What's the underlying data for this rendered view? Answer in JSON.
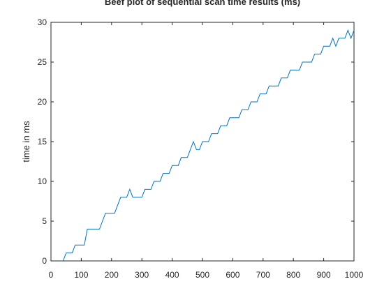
{
  "chart_data": {
    "type": "line",
    "title": "Beef plot of sequential scan time results (ms)",
    "xlabel": "",
    "ylabel": "time in ms",
    "xlim": [
      0,
      1000
    ],
    "ylim": [
      0,
      30
    ],
    "xticks": [
      0,
      100,
      200,
      300,
      400,
      500,
      600,
      700,
      800,
      900,
      1000
    ],
    "yticks": [
      0,
      5,
      10,
      15,
      20,
      25,
      30
    ],
    "grid": false,
    "legend": "none",
    "series": [
      {
        "color": "#0072bd",
        "points": [
          [
            40,
            0
          ],
          [
            50,
            1
          ],
          [
            60,
            1
          ],
          [
            70,
            1
          ],
          [
            80,
            2
          ],
          [
            90,
            2
          ],
          [
            100,
            2
          ],
          [
            110,
            2
          ],
          [
            120,
            4
          ],
          [
            130,
            4
          ],
          [
            140,
            4
          ],
          [
            150,
            4
          ],
          [
            160,
            4
          ],
          [
            170,
            5
          ],
          [
            180,
            6
          ],
          [
            190,
            6
          ],
          [
            200,
            6
          ],
          [
            210,
            6
          ],
          [
            220,
            7
          ],
          [
            230,
            8
          ],
          [
            240,
            8
          ],
          [
            250,
            8
          ],
          [
            260,
            9
          ],
          [
            270,
            8
          ],
          [
            280,
            8
          ],
          [
            290,
            8
          ],
          [
            300,
            8
          ],
          [
            310,
            9
          ],
          [
            320,
            9
          ],
          [
            330,
            9
          ],
          [
            340,
            10
          ],
          [
            350,
            10
          ],
          [
            360,
            10
          ],
          [
            370,
            11
          ],
          [
            380,
            11
          ],
          [
            390,
            11
          ],
          [
            400,
            12
          ],
          [
            410,
            12
          ],
          [
            420,
            12
          ],
          [
            430,
            13
          ],
          [
            440,
            13
          ],
          [
            450,
            13
          ],
          [
            460,
            14
          ],
          [
            470,
            15
          ],
          [
            480,
            14
          ],
          [
            490,
            14
          ],
          [
            500,
            15
          ],
          [
            510,
            15
          ],
          [
            520,
            15
          ],
          [
            530,
            16
          ],
          [
            540,
            16
          ],
          [
            550,
            16
          ],
          [
            560,
            17
          ],
          [
            570,
            17
          ],
          [
            580,
            17
          ],
          [
            590,
            18
          ],
          [
            600,
            18
          ],
          [
            610,
            18
          ],
          [
            620,
            18
          ],
          [
            630,
            19
          ],
          [
            640,
            19
          ],
          [
            650,
            19
          ],
          [
            660,
            20
          ],
          [
            670,
            20
          ],
          [
            680,
            20
          ],
          [
            690,
            21
          ],
          [
            700,
            21
          ],
          [
            710,
            21
          ],
          [
            720,
            22
          ],
          [
            730,
            22
          ],
          [
            740,
            22
          ],
          [
            750,
            22
          ],
          [
            760,
            23
          ],
          [
            770,
            23
          ],
          [
            780,
            23
          ],
          [
            790,
            24
          ],
          [
            800,
            24
          ],
          [
            810,
            24
          ],
          [
            820,
            24
          ],
          [
            830,
            25
          ],
          [
            840,
            25
          ],
          [
            850,
            25
          ],
          [
            860,
            25
          ],
          [
            870,
            26
          ],
          [
            880,
            26
          ],
          [
            890,
            26
          ],
          [
            900,
            27
          ],
          [
            910,
            27
          ],
          [
            920,
            27
          ],
          [
            930,
            28
          ],
          [
            940,
            27
          ],
          [
            950,
            28
          ],
          [
            960,
            28
          ],
          [
            970,
            28
          ],
          [
            980,
            29
          ],
          [
            990,
            28
          ],
          [
            1000,
            29
          ]
        ]
      }
    ]
  }
}
